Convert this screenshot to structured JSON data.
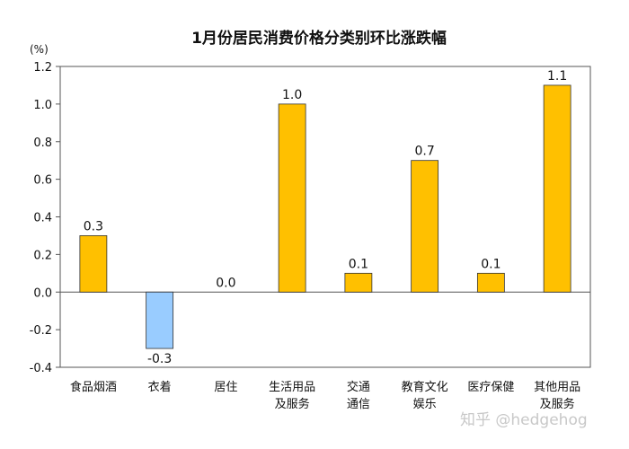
{
  "chart_data": {
    "type": "bar",
    "title": "1月份居民消费价格分类别环比涨跌幅",
    "unit_label": "(%)",
    "categories": [
      [
        "食品烟酒"
      ],
      [
        "衣着"
      ],
      [
        "居住"
      ],
      [
        "生活用品",
        "及服务"
      ],
      [
        "交通",
        "通信"
      ],
      [
        "教育文化",
        "娱乐"
      ],
      [
        "医疗保健"
      ],
      [
        "其他用品",
        "及服务"
      ]
    ],
    "values": [
      0.3,
      -0.3,
      0.0,
      1.0,
      0.1,
      0.7,
      0.1,
      1.1
    ],
    "data_labels": [
      "0.3",
      "-0.3",
      "0.0",
      "1.0",
      "0.1",
      "0.7",
      "0.1",
      "1.1"
    ],
    "ylim": [
      -0.4,
      1.2
    ],
    "yticks": [
      "1.2",
      "1.0",
      "0.8",
      "0.6",
      "0.4",
      "0.2",
      "0.0",
      "-0.2",
      "-0.4"
    ],
    "ytick_values": [
      1.2,
      1.0,
      0.8,
      0.6,
      0.4,
      0.2,
      0.0,
      -0.2,
      -0.4
    ],
    "colors": {
      "positive": "#FFC000",
      "negative": "#99CCFF",
      "outline": "#333333"
    },
    "grid": false,
    "legend": "none"
  },
  "watermark": "知乎 @hedgehog"
}
